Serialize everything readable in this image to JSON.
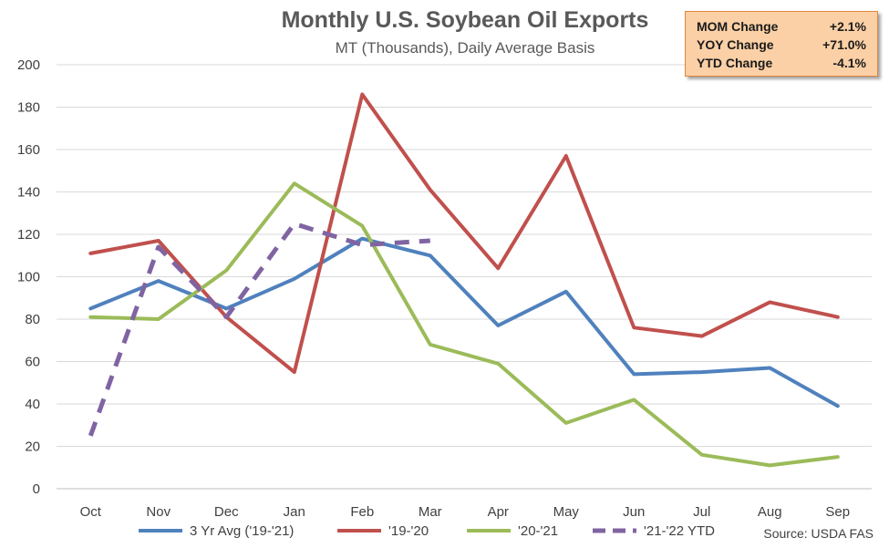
{
  "chart_data": {
    "type": "line",
    "title": "Monthly U.S. Soybean Oil Exports",
    "subtitle": "MT (Thousands), Daily Average Basis",
    "categories": [
      "Oct",
      "Nov",
      "Dec",
      "Jan",
      "Feb",
      "Mar",
      "Apr",
      "May",
      "Jun",
      "Jul",
      "Aug",
      "Sep"
    ],
    "ylim": [
      0,
      200
    ],
    "yticks": [
      0,
      20,
      40,
      60,
      80,
      100,
      120,
      140,
      160,
      180,
      200
    ],
    "grid": true,
    "legend_position": "bottom",
    "series": [
      {
        "name": "3 Yr Avg ('19-'21)",
        "color": "#4f81bd",
        "dashed": false,
        "values": [
          85,
          98,
          85,
          99,
          118,
          110,
          77,
          93,
          54,
          55,
          57,
          39
        ]
      },
      {
        "name": "'19-'20",
        "color": "#c0504d",
        "dashed": false,
        "values": [
          111,
          117,
          81,
          55,
          186,
          141,
          104,
          157,
          76,
          72,
          88,
          81
        ]
      },
      {
        "name": "'20-'21",
        "color": "#9bbb59",
        "dashed": false,
        "values": [
          81,
          80,
          103,
          144,
          124,
          68,
          59,
          31,
          42,
          16,
          11,
          15
        ]
      },
      {
        "name": "'21-'22 YTD",
        "color": "#8064a2",
        "dashed": true,
        "values": [
          25,
          114,
          81,
          125,
          115,
          117,
          null,
          null,
          null,
          null,
          null,
          null
        ]
      }
    ],
    "source": "Source: USDA FAS"
  },
  "stats": [
    {
      "label": "MOM Change",
      "value": "+2.1%"
    },
    {
      "label": "YOY Change",
      "value": "+71.0%"
    },
    {
      "label": "YTD Change",
      "value": "-4.1%"
    }
  ]
}
